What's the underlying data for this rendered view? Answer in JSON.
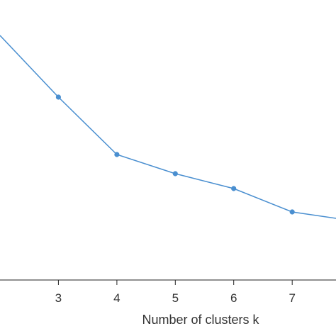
{
  "chart_data": {
    "type": "line",
    "xlabel": "Number of clusters k",
    "ylabel": "",
    "title": "",
    "x_ticks": [
      3,
      4,
      5,
      6,
      7
    ],
    "series": [
      {
        "x": [
          2,
          3,
          4,
          5,
          6,
          7,
          8
        ],
        "y": [
          0.9,
          0.61,
          0.34,
          0.25,
          0.18,
          0.07,
          0.03
        ]
      }
    ],
    "xlim": [
      2,
      7.75
    ],
    "ylim": [
      -0.2,
      1.0
    ],
    "grid": false,
    "legend": "none",
    "line_color": "#4a8fd0",
    "axis_color": "#222222",
    "text_color": "#333333"
  }
}
